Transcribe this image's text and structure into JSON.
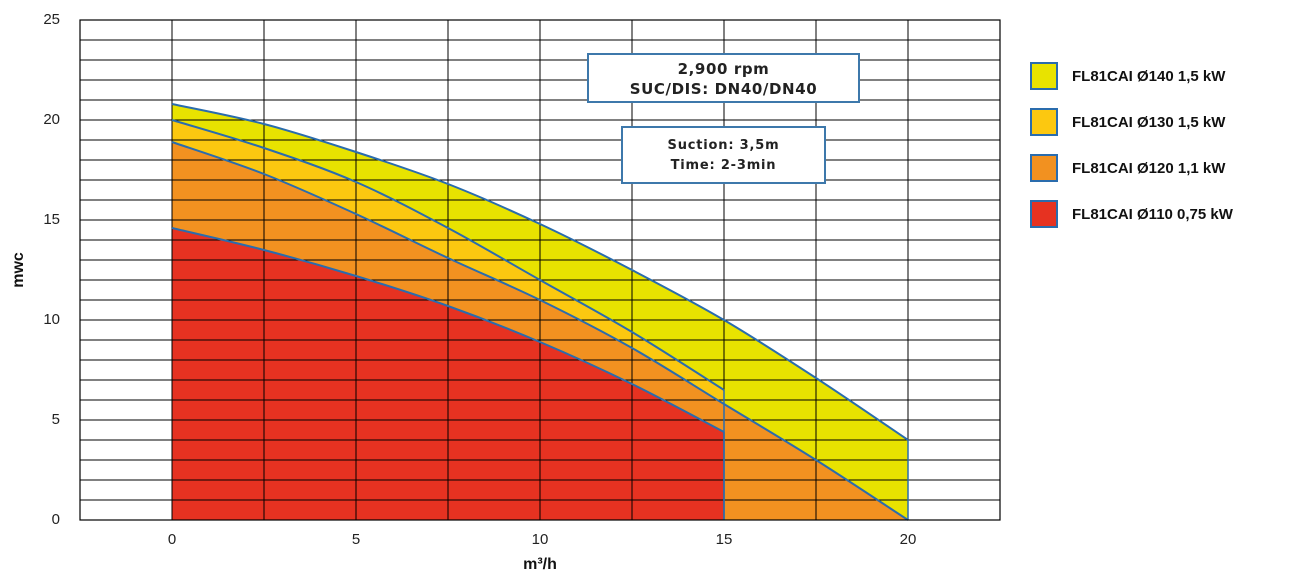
{
  "chart_data": {
    "type": "area",
    "title": "",
    "xlabel": "m³/h",
    "ylabel": "mwc",
    "xlim": [
      -2.5,
      22.5
    ],
    "ylim": [
      0,
      25
    ],
    "x_ticks": [
      "0",
      "5",
      "10",
      "15",
      "20"
    ],
    "y_ticks": [
      "0",
      "5",
      "10",
      "15",
      "20",
      "25"
    ],
    "grid": true,
    "annotations": [
      {
        "lines": [
          "2,900 rpm",
          "SUC/DIS: DN40/DN40"
        ]
      },
      {
        "lines": [
          "Suction: 3,5m",
          "Time: 2-3min"
        ]
      }
    ],
    "legend_position": "right",
    "series": [
      {
        "name": "FL81CAI Ø140 1,5 kW",
        "color": "#e8e300",
        "x": [
          0,
          2.5,
          5,
          7.5,
          10,
          12.5,
          15,
          17.5,
          20
        ],
        "values": [
          20.8,
          19.8,
          18.4,
          16.8,
          14.8,
          12.5,
          10.0,
          7.1,
          4.0
        ]
      },
      {
        "name": "FL81CAI Ø130 1,5 kW",
        "color": "#fcc810",
        "x": [
          0,
          2.5,
          5,
          7.5,
          10,
          12.5,
          15
        ],
        "values": [
          20.0,
          18.6,
          16.9,
          14.6,
          12.0,
          9.4,
          6.5
        ]
      },
      {
        "name": "FL81CAI Ø120 1,1 kW",
        "color": "#f29120",
        "x": [
          0,
          2.5,
          5,
          7.5,
          10,
          12.5,
          15,
          17.5,
          20
        ],
        "values": [
          18.9,
          17.3,
          15.3,
          13.1,
          11.0,
          8.6,
          5.8,
          3.0,
          0.0
        ]
      },
      {
        "name": "FL81CAI Ø110 0,75 kW",
        "color": "#e63221",
        "x": [
          0,
          2.5,
          5,
          7.5,
          10,
          12.5,
          15
        ],
        "values": [
          14.6,
          13.5,
          12.2,
          10.7,
          8.9,
          6.8,
          4.4
        ]
      }
    ]
  }
}
